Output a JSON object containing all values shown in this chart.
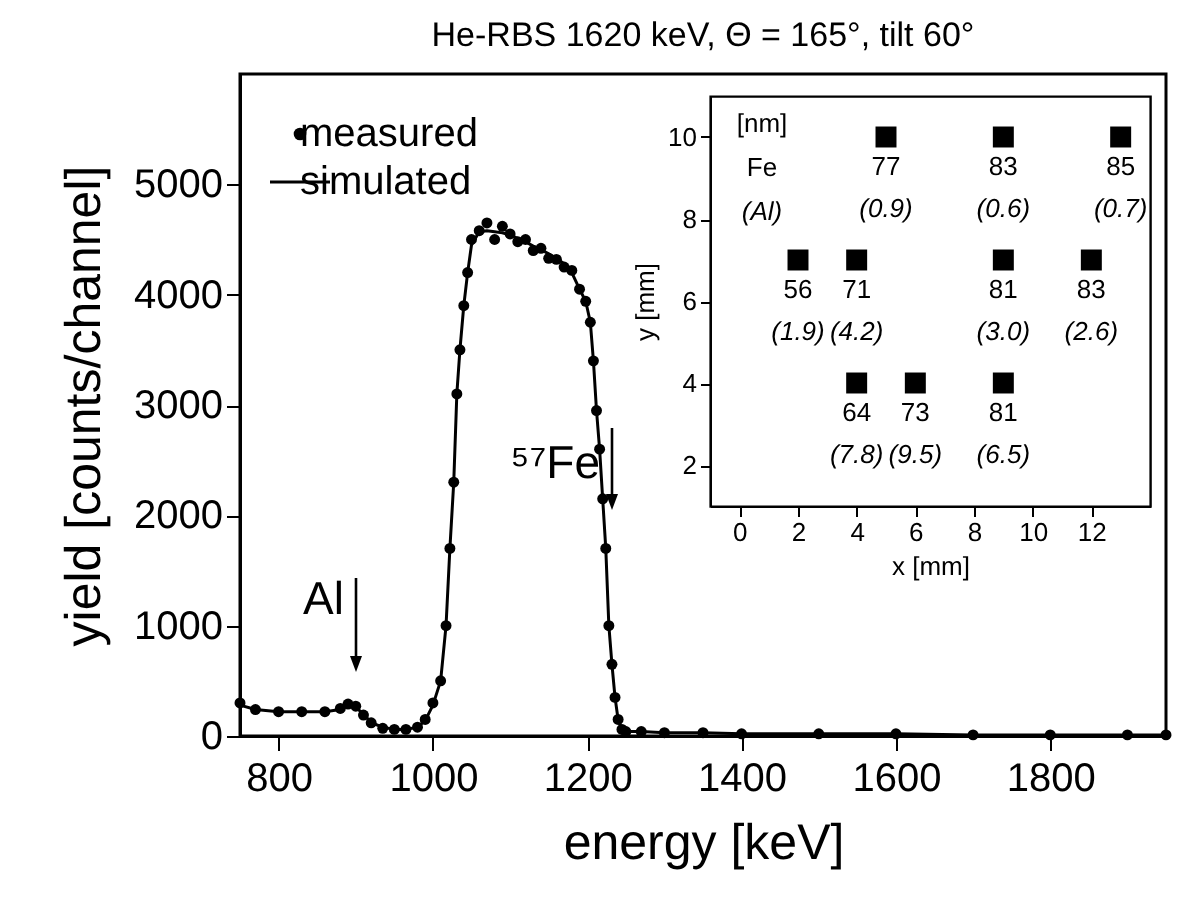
{
  "chart_data": [
    {
      "type": "line",
      "title": "He-RBS 1620 keV, Θ = 165°, tilt 60°",
      "xlabel": "energy [keV]",
      "ylabel": "yield [counts/channel]",
      "x": [
        750,
        770,
        800,
        830,
        860,
        880,
        890,
        900,
        910,
        920,
        935,
        950,
        965,
        980,
        990,
        1000,
        1010,
        1017,
        1022,
        1027,
        1031,
        1035,
        1040,
        1045,
        1050,
        1060,
        1070,
        1080,
        1090,
        1100,
        1110,
        1120,
        1130,
        1140,
        1150,
        1160,
        1170,
        1180,
        1190,
        1198,
        1204,
        1208,
        1212,
        1216,
        1220,
        1224,
        1228,
        1232,
        1236,
        1240,
        1245,
        1250,
        1270,
        1300,
        1350,
        1400,
        1500,
        1600,
        1700,
        1800,
        1900,
        1950
      ],
      "series": [
        {
          "name": "measured",
          "type": "scatter",
          "marker": "circle",
          "color": "#000000",
          "values": [
            300,
            240,
            220,
            220,
            220,
            250,
            290,
            270,
            190,
            120,
            70,
            60,
            60,
            80,
            150,
            300,
            500,
            1000,
            1700,
            2300,
            3100,
            3500,
            3900,
            4200,
            4500,
            4580,
            4650,
            4500,
            4620,
            4550,
            4480,
            4500,
            4400,
            4420,
            4330,
            4320,
            4250,
            4220,
            4050,
            3940,
            3750,
            3400,
            2950,
            2600,
            2150,
            1700,
            1000,
            650,
            350,
            150,
            60,
            40,
            40,
            30,
            30,
            20,
            20,
            20,
            10,
            10,
            10,
            10
          ]
        },
        {
          "name": "simulated",
          "type": "line",
          "color": "#000000",
          "values": [
            280,
            240,
            220,
            220,
            220,
            240,
            280,
            260,
            200,
            120,
            80,
            60,
            60,
            80,
            140,
            280,
            500,
            1000,
            1700,
            2300,
            3100,
            3500,
            3900,
            4200,
            4450,
            4570,
            4580,
            4570,
            4560,
            4540,
            4510,
            4480,
            4440,
            4410,
            4370,
            4330,
            4280,
            4200,
            4050,
            3940,
            3750,
            3400,
            2950,
            2600,
            2150,
            1700,
            1000,
            650,
            350,
            150,
            60,
            40,
            40,
            30,
            30,
            20,
            20,
            20,
            10,
            10,
            10,
            10
          ]
        }
      ],
      "xlim": [
        750,
        1950
      ],
      "xticks": [
        800,
        1000,
        1200,
        1400,
        1600,
        1800
      ],
      "ylim": [
        0,
        6000
      ],
      "yticks": [
        0,
        1000,
        2000,
        3000,
        4000,
        5000
      ],
      "legend": "top left",
      "annotations": [
        "Al",
        "⁵⁷Fe"
      ]
    },
    {
      "type": "scatter",
      "xlabel": "x [mm]",
      "ylabel": "y [mm]",
      "marker": "square",
      "x": [
        5,
        9,
        13,
        2,
        4,
        9,
        12,
        4,
        6,
        9
      ],
      "values": [
        10,
        10,
        10,
        7,
        7,
        7,
        7,
        4,
        4,
        4
      ],
      "xlim": [
        -1,
        14
      ],
      "xticks": [
        0,
        2,
        4,
        6,
        8,
        10,
        12
      ],
      "ylim": [
        1,
        11
      ],
      "yticks": [
        2,
        4,
        6,
        8,
        10
      ],
      "annotations": [
        "[nm]",
        "Fe",
        "(Al)",
        {
          "text": "77",
          "x": 5,
          "y": 10
        },
        {
          "text": "83",
          "x": 9,
          "y": 10
        },
        {
          "text": "85",
          "x": 13,
          "y": 10
        },
        {
          "text": "56",
          "x": 2,
          "y": 7
        },
        {
          "text": "71",
          "x": 4,
          "y": 7
        },
        {
          "text": "81",
          "x": 9,
          "y": 7
        },
        {
          "text": "83",
          "x": 12,
          "y": 7
        },
        {
          "text": "64",
          "x": 4,
          "y": 4
        },
        {
          "text": "73",
          "x": 6,
          "y": 4
        },
        {
          "text": "81",
          "x": 9,
          "y": 4
        },
        {
          "text": "(0.9)",
          "x": 5,
          "y": 10
        },
        {
          "text": "(0.6)",
          "x": 9,
          "y": 10
        },
        {
          "text": "(0.7)",
          "x": 13,
          "y": 10
        },
        {
          "text": "(1.9)",
          "x": 2,
          "y": 7
        },
        {
          "text": "(4.2)",
          "x": 4,
          "y": 7
        },
        {
          "text": "(3.0)",
          "x": 9,
          "y": 7
        },
        {
          "text": "(2.6)",
          "x": 12,
          "y": 7
        },
        {
          "text": "(7.8)",
          "x": 4,
          "y": 4
        },
        {
          "text": "(9.5)",
          "x": 6,
          "y": 4
        },
        {
          "text": "(6.5)",
          "x": 9,
          "y": 4
        }
      ]
    }
  ]
}
